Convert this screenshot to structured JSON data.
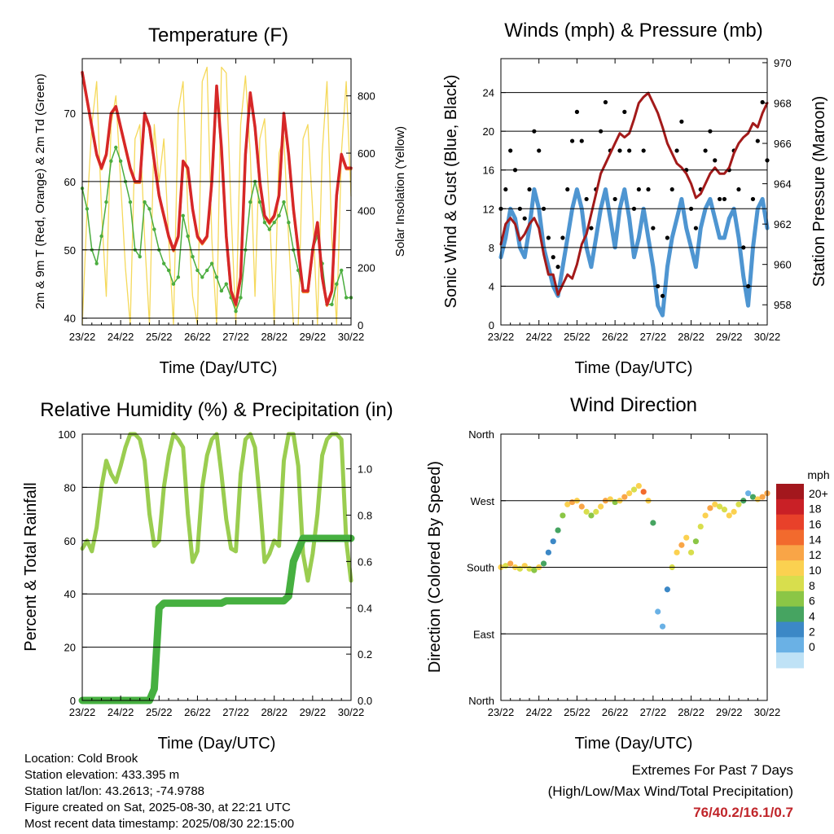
{
  "time_ticks": [
    "23/22",
    "24/22",
    "25/22",
    "26/22",
    "27/22",
    "28/22",
    "29/22",
    "30/22"
  ],
  "panels": {
    "temperature": {
      "title": "Temperature (F)",
      "xlabel": "Time (Day/UTC)",
      "ylabel_left": "2m & 9m T (Red, Orange) & 2m Td (Green)",
      "ylabel_right": "Solar Insolation (Yellow)",
      "yticks_left": [
        "40",
        "50",
        "60",
        "70"
      ],
      "yticks_right": [
        "0",
        "200",
        "400",
        "600",
        "800"
      ]
    },
    "winds": {
      "title": "Winds (mph) & Pressure (mb)",
      "xlabel": "Time (Day/UTC)",
      "ylabel_left": "Sonic Wind & Gust (Blue, Black)",
      "ylabel_right": "Station Pressure (Maroon)",
      "yticks_left": [
        "0",
        "4",
        "8",
        "12",
        "16",
        "20",
        "24"
      ],
      "yticks_right": [
        "958",
        "960",
        "962",
        "964",
        "966",
        "968",
        "970"
      ]
    },
    "humidity": {
      "title": "Relative Humidity (%) & Precipitation (in)",
      "xlabel": "Time (Day/UTC)",
      "ylabel_left": "Percent & Total Rainfall",
      "yticks_left": [
        "0",
        "20",
        "40",
        "60",
        "80",
        "100"
      ],
      "yticks_right": [
        "0.0",
        "0.2",
        "0.4",
        "0.6",
        "0.8",
        "1.0"
      ]
    },
    "direction": {
      "title": "Wind Direction",
      "xlabel": "Time (Day/UTC)",
      "ylabel_left": "Direction (Colored By Speed)",
      "yticks_left": [
        "North",
        "East",
        "South",
        "West",
        "North"
      ],
      "colorbar_title": "mph",
      "colorbar_labels": [
        "20+",
        "18",
        "16",
        "14",
        "12",
        "10",
        "8",
        "6",
        "4",
        "2",
        "0"
      ],
      "colorbar_colors": [
        "#a3171d",
        "#c92026",
        "#e8412a",
        "#f26a2d",
        "#f9a547",
        "#fbd150",
        "#d8de4d",
        "#8bc646",
        "#46a461",
        "#3c88c6",
        "#6ab1e5",
        "#bfe2f6"
      ]
    }
  },
  "info": {
    "location": "Location: Cold Brook",
    "elevation": "Station elevation: 433.395 m",
    "latlon": "Station lat/lon: 43.2613; -74.9788",
    "created": "Figure created on Sat, 2025-08-30, at 22:21 UTC",
    "recent": "Most recent data timestamp: 2025/08/30 22:15:00"
  },
  "extremes": {
    "title": "Extremes For Past 7 Days",
    "subtitle": "(High/Low/Max Wind/Total Precipitation)",
    "values": "76/40.2/16.1/0.7"
  },
  "colors": {
    "temp_2m": "#d62728",
    "temp_9m": "#f58a2a",
    "dewpoint": "#4bad3f",
    "solar": "#f5d95b",
    "wind": "#4e95d1",
    "gust": "#000000",
    "pressure": "#a31a1a",
    "rh": "#9acd50",
    "precip": "#46b040"
  },
  "chart_data": [
    {
      "type": "line",
      "name_ref": "temperature",
      "x": [
        0,
        0.5,
        1,
        1.5,
        2,
        2.5,
        3,
        3.5,
        4,
        4.5,
        5,
        5.5,
        6,
        6.5,
        7,
        7.5,
        8,
        8.5,
        9,
        9.5,
        10,
        10.5,
        11,
        11.5,
        12,
        12.5,
        13,
        13.5,
        14,
        14.5,
        15,
        15.5,
        16,
        16.5,
        17,
        17.5,
        18,
        18.5,
        19,
        19.5,
        20,
        20.5,
        21,
        21.5,
        22,
        22.5,
        23,
        23.5,
        24,
        24.5,
        25,
        25.5,
        26,
        26.5,
        27,
        27.5,
        28
      ],
      "series": [
        {
          "values": [
            76,
            72,
            68,
            64,
            62,
            64,
            70,
            71,
            68,
            65,
            62,
            60,
            60,
            70,
            68,
            63,
            58,
            55,
            52,
            50,
            52,
            63,
            62,
            56,
            52,
            51,
            52,
            60,
            74,
            65,
            52,
            44,
            42,
            46,
            64,
            73,
            68,
            60,
            55,
            54,
            55,
            58,
            70,
            64,
            56,
            50,
            44,
            44,
            50,
            54,
            46,
            42,
            44,
            58,
            64,
            62,
            62
          ]
        },
        {
          "values": [
            59,
            56,
            50,
            48,
            52,
            57,
            63,
            65,
            63,
            60,
            57,
            50,
            49,
            57,
            56,
            53,
            50,
            48,
            47,
            45,
            46,
            55,
            52,
            49,
            47,
            46,
            47,
            48,
            46,
            44,
            45,
            43,
            41,
            43,
            50,
            57,
            60,
            57,
            54,
            53,
            54,
            55,
            57,
            54,
            50,
            47,
            44,
            44,
            50,
            52,
            48,
            42,
            42,
            45,
            47,
            43,
            43
          ]
        },
        {
          "values": [
            0,
            400,
            700,
            850,
            400,
            100,
            700,
            800,
            500,
            200,
            0,
            650,
            700,
            300,
            0,
            700,
            500,
            650,
            300,
            0,
            750,
            850,
            400,
            100,
            0,
            850,
            900,
            300,
            0,
            900,
            880,
            400,
            0,
            700,
            870,
            600,
            100,
            650,
            720,
            400,
            0,
            600,
            660,
            300,
            0,
            0,
            650,
            700,
            400,
            0,
            600,
            850,
            300,
            0,
            600,
            850,
            450
          ]
        }
      ],
      "ylim": [
        39,
        78
      ],
      "ylim_right": [
        0,
        930
      ]
    },
    {
      "type": "line",
      "name_ref": "winds",
      "x": [
        0,
        0.5,
        1,
        1.5,
        2,
        2.5,
        3,
        3.5,
        4,
        4.5,
        5,
        5.5,
        6,
        6.5,
        7,
        7.5,
        8,
        8.5,
        9,
        9.5,
        10,
        10.5,
        11,
        11.5,
        12,
        12.5,
        13,
        13.5,
        14,
        14.5,
        15,
        15.5,
        16,
        16.5,
        17,
        17.5,
        18,
        18.5,
        19,
        19.5,
        20,
        20.5,
        21,
        21.5,
        22,
        22.5,
        23,
        23.5,
        24,
        24.5,
        25,
        25.5,
        26,
        26.5,
        27,
        27.5,
        28
      ],
      "series": [
        {
          "values": [
            7,
            9,
            12,
            11,
            8,
            7,
            10,
            14,
            12,
            8,
            6,
            4,
            3,
            6,
            9,
            12,
            14,
            12,
            8,
            6,
            9,
            12,
            14,
            11,
            8,
            12,
            14,
            11,
            7,
            9,
            12,
            9,
            6,
            2,
            1,
            6,
            9,
            11,
            13,
            10,
            8,
            6,
            10,
            12,
            13,
            11,
            9,
            9,
            11,
            12,
            9,
            5,
            2,
            8,
            12,
            13,
            10
          ]
        },
        {
          "values": [
            12,
            14,
            18,
            16,
            12,
            11,
            14,
            20,
            18,
            12,
            9,
            7,
            6,
            9,
            14,
            19,
            22,
            19,
            13,
            10,
            14,
            20,
            23,
            18,
            13,
            18,
            22,
            18,
            12,
            14,
            18,
            14,
            10,
            4,
            3,
            9,
            14,
            18,
            21,
            16,
            12,
            10,
            14,
            18,
            20,
            17,
            13,
            13,
            16,
            18,
            14,
            8,
            4,
            13,
            19,
            23,
            17
          ]
        },
        {
          "values": [
            961.0,
            962.0,
            962.3,
            962.0,
            961.2,
            961.5,
            962.0,
            962.3,
            961.8,
            960.5,
            959.5,
            959.5,
            958.5,
            959.0,
            959.5,
            959.3,
            960.0,
            961.0,
            961.5,
            962.5,
            963.5,
            964.5,
            965.0,
            965.5,
            966.0,
            966.5,
            966.3,
            966.5,
            967.2,
            968.0,
            968.3,
            968.5,
            968.0,
            967.5,
            966.8,
            966.0,
            965.5,
            965.0,
            964.8,
            964.5,
            964.0,
            963.3,
            963.5,
            964.0,
            964.5,
            964.8,
            964.5,
            964.5,
            964.8,
            965.5,
            966.0,
            966.3,
            966.5,
            967.0,
            966.8,
            967.5,
            968.0
          ]
        }
      ],
      "ylim": [
        0,
        27.5
      ],
      "ylim_right": [
        957,
        970.2
      ]
    },
    {
      "type": "line",
      "name_ref": "humidity",
      "x": [
        0,
        0.5,
        1,
        1.5,
        2,
        2.5,
        3,
        3.5,
        4,
        4.5,
        5,
        5.5,
        6,
        6.5,
        7,
        7.5,
        8,
        8.5,
        9,
        9.5,
        10,
        10.5,
        11,
        11.5,
        12,
        12.5,
        13,
        13.5,
        14,
        14.5,
        15,
        15.5,
        16,
        16.5,
        17,
        17.5,
        18,
        18.5,
        19,
        19.5,
        20,
        20.5,
        21,
        21.5,
        22,
        22.5,
        23,
        23.5,
        24,
        24.5,
        25,
        25.5,
        26,
        26.5,
        27,
        27.5,
        28
      ],
      "series": [
        {
          "values": [
            57,
            60,
            56,
            65,
            80,
            90,
            85,
            82,
            88,
            95,
            100,
            100,
            98,
            90,
            70,
            58,
            60,
            80,
            92,
            100,
            98,
            95,
            70,
            52,
            56,
            80,
            92,
            98,
            100,
            85,
            68,
            57,
            56,
            85,
            98,
            100,
            95,
            75,
            52,
            55,
            60,
            58,
            90,
            100,
            100,
            88,
            55,
            45,
            55,
            70,
            92,
            98,
            100,
            100,
            98,
            60,
            45
          ]
        },
        {
          "values": [
            0,
            0,
            0,
            0,
            0,
            0,
            0,
            0,
            0,
            0,
            0,
            0,
            0,
            0,
            0,
            0.05,
            0.4,
            0.42,
            0.42,
            0.42,
            0.42,
            0.42,
            0.42,
            0.42,
            0.42,
            0.42,
            0.42,
            0.42,
            0.42,
            0.42,
            0.43,
            0.43,
            0.43,
            0.43,
            0.43,
            0.43,
            0.43,
            0.43,
            0.43,
            0.43,
            0.43,
            0.43,
            0.43,
            0.45,
            0.6,
            0.65,
            0.7,
            0.7,
            0.7,
            0.7,
            0.7,
            0.7,
            0.7,
            0.7,
            0.7,
            0.7,
            0.7
          ]
        }
      ],
      "ylim": [
        0,
        100
      ],
      "ylim_right": [
        0,
        1.15
      ]
    },
    {
      "type": "scatter",
      "name_ref": "direction",
      "x": [
        0,
        0.5,
        1,
        1.5,
        2,
        2.5,
        3,
        3.5,
        4,
        4.5,
        5,
        5.5,
        6,
        6.5,
        7,
        7.5,
        8,
        8.5,
        9,
        9.5,
        10,
        10.5,
        11,
        11.5,
        12,
        12.5,
        13,
        13.5,
        14,
        14.5,
        15,
        15.5,
        16,
        16.5,
        17,
        17.5,
        18,
        18.5,
        19,
        19.5,
        20,
        20.5,
        21,
        21.5,
        22,
        22.5,
        23,
        23.5,
        24,
        24.5,
        25,
        25.5,
        26,
        26.5,
        27,
        27.5,
        28
      ],
      "series": [
        {
          "values": [
            180,
            182,
            185,
            180,
            178,
            182,
            178,
            176,
            180,
            185,
            200,
            215,
            230,
            250,
            265,
            268,
            270,
            262,
            255,
            250,
            255,
            262,
            270,
            272,
            268,
            270,
            275,
            280,
            285,
            290,
            282,
            270,
            240,
            120,
            100,
            150,
            180,
            200,
            210,
            220,
            200,
            215,
            235,
            250,
            260,
            265,
            262,
            258,
            250,
            255,
            265,
            270,
            280,
            275,
            272,
            275,
            280
          ]
        },
        {
          "values": [
            12,
            10,
            14,
            11,
            9,
            12,
            10,
            8,
            11,
            6,
            4,
            3,
            5,
            8,
            11,
            13,
            12,
            14,
            9,
            7,
            9,
            11,
            14,
            12,
            8,
            11,
            13,
            12,
            9,
            12,
            15,
            11,
            5,
            2,
            1,
            4,
            9,
            12,
            14,
            12,
            9,
            7,
            10,
            12,
            14,
            12,
            10,
            9,
            11,
            12,
            10,
            6,
            2,
            6,
            11,
            13,
            14
          ]
        }
      ],
      "ylim": [
        0,
        360
      ]
    }
  ]
}
